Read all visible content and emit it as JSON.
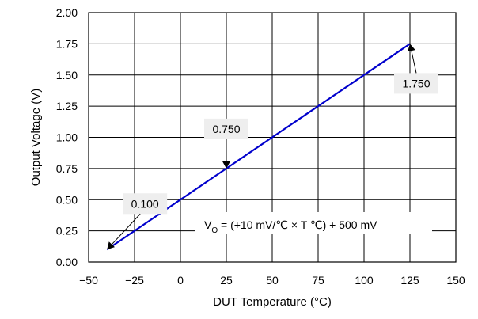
{
  "colors": {
    "line": "#0000cc",
    "grid": "#000000",
    "callout_fill": "#eeeeee",
    "background": "#ffffff"
  },
  "chart_data": {
    "type": "line",
    "xlabel": "DUT Temperature (°C)",
    "ylabel": "Output Voltage (V)",
    "xlim": [
      -50,
      150
    ],
    "ylim": [
      0,
      2
    ],
    "x_ticks": [
      -50,
      -25,
      0,
      25,
      50,
      75,
      100,
      125,
      150
    ],
    "x_tick_labels": [
      "−50",
      "−25",
      "0",
      "25",
      "50",
      "75",
      "100",
      "125",
      "150"
    ],
    "y_ticks": [
      0,
      0.25,
      0.5,
      0.75,
      1.0,
      1.25,
      1.5,
      1.75,
      2.0
    ],
    "y_tick_labels": [
      "0.00",
      "0.25",
      "0.50",
      "0.75",
      "1.00",
      "1.25",
      "1.50",
      "1.75",
      "2.00"
    ],
    "grid": true,
    "series": [
      {
        "x": [
          -40,
          125
        ],
        "y": [
          0.1,
          1.75
        ]
      }
    ],
    "annotations": [
      {
        "text": "0.100",
        "x": -40,
        "y": 0.1
      },
      {
        "text": "0.750",
        "x": 25,
        "y": 0.75
      },
      {
        "text": "1.750",
        "x": 125,
        "y": 1.75
      }
    ],
    "formula": {
      "prefix": "V",
      "subscript": "O",
      "rest": " = (+10 mV/℃ × T ℃) + 500 mV"
    }
  }
}
